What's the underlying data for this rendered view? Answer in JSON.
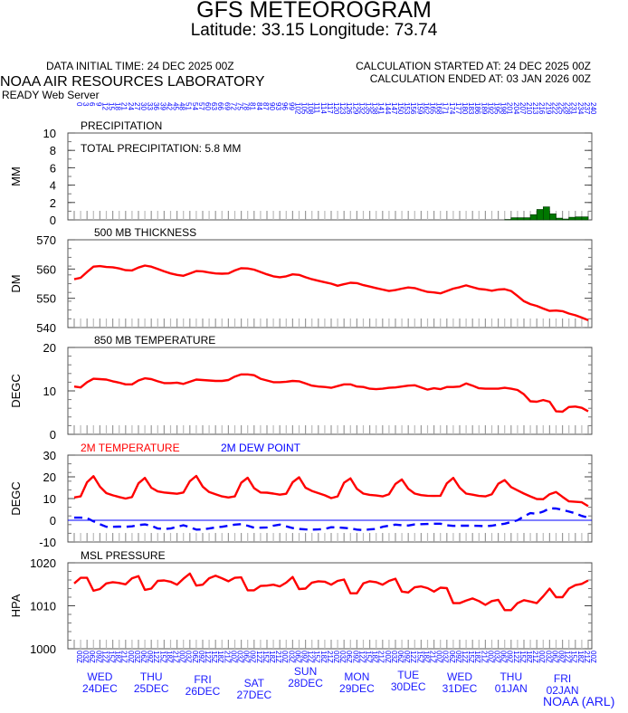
{
  "header": {
    "title": "GFS METEOROGRAM",
    "location": "Latitude: 33.15 Longitude:  73.74",
    "data_initial_time": "DATA INITIAL TIME: 24 DEC 2025 00Z",
    "calc_started": "CALCULATION STARTED AT: 24 DEC 2025 00Z",
    "calc_ended": "CALCULATION ENDED AT: 03 JAN 2026 00Z",
    "lab": "NOAA AIR RESOURCES LABORATORY",
    "server": "READY Web Server"
  },
  "footer": "NOAA (ARL)",
  "colors": {
    "red": "#ff0000",
    "blue": "#0000ff",
    "green": "#007700",
    "label_blue": "#1a1aff"
  },
  "chart_data": {
    "type": "line",
    "x_forecast_hours_step": 3,
    "x_forecast_hours_range": [
      0,
      240
    ],
    "days": [
      {
        "dow": "WED",
        "date": "24DEC"
      },
      {
        "dow": "THU",
        "date": "25DEC"
      },
      {
        "dow": "FRI",
        "date": "26DEC"
      },
      {
        "dow": "SAT",
        "date": "27DEC"
      },
      {
        "dow": "SUN",
        "date": "28DEC"
      },
      {
        "dow": "MON",
        "date": "29DEC"
      },
      {
        "dow": "TUE",
        "date": "30DEC"
      },
      {
        "dow": "WED",
        "date": "31DEC"
      },
      {
        "dow": "THU",
        "date": "01JAN"
      },
      {
        "dow": "FRI",
        "date": "02JAN"
      }
    ],
    "panels": [
      {
        "id": "precip",
        "type": "bar",
        "title": "PRECIPITATION",
        "ylabel": "MM",
        "annotation": "TOTAL PRECIPITATION:   5.8 MM",
        "ylim": [
          0,
          10
        ],
        "yticks": [
          0,
          2,
          4,
          6,
          8,
          10
        ],
        "series": [
          {
            "name": "PRECIPITATION",
            "color": "#007700",
            "values": [
              0,
              0,
              0,
              0,
              0,
              0,
              0,
              0,
              0,
              0,
              0,
              0,
              0,
              0,
              0,
              0,
              0,
              0,
              0,
              0,
              0,
              0,
              0,
              0,
              0,
              0,
              0,
              0,
              0,
              0,
              0,
              0,
              0,
              0,
              0,
              0,
              0,
              0,
              0,
              0,
              0,
              0,
              0,
              0,
              0,
              0,
              0,
              0,
              0,
              0,
              0,
              0,
              0,
              0,
              0,
              0,
              0,
              0,
              0,
              0,
              0,
              0,
              0,
              0,
              0,
              0,
              0,
              0,
              0.05,
              0.25,
              0.25,
              0.25,
              0.6,
              1.2,
              1.5,
              0.7,
              0.2,
              0.1,
              0.3,
              0.35,
              0.35
            ]
          }
        ]
      },
      {
        "id": "thickness",
        "type": "line",
        "title": "500 MB  THICKNESS",
        "ylabel": "DM",
        "ylim": [
          540,
          570
        ],
        "yticks": [
          540,
          550,
          560,
          570
        ],
        "series": [
          {
            "name": "500 MB THICKNESS",
            "color": "#ff0000",
            "values": [
              556.5,
              557,
              559,
              560.8,
              561,
              560.7,
              560.6,
              560.2,
              559.6,
              559.5,
              560.5,
              561.2,
              560.8,
              560,
              559.2,
              558.5,
              558,
              557.7,
              558.5,
              559.3,
              559.2,
              558.8,
              558.5,
              558.4,
              558.5,
              559.5,
              560.3,
              560.2,
              559.8,
              559,
              558.2,
              557.5,
              557.2,
              557.5,
              558.2,
              558,
              557.2,
              556.5,
              556,
              555.5,
              555,
              554.3,
              554.8,
              555.3,
              555.2,
              554.5,
              554,
              553.5,
              553,
              552.5,
              552.8,
              553.3,
              553.7,
              553.5,
              552.8,
              552.2,
              552,
              551.7,
              552.5,
              553.3,
              553.8,
              554.4,
              553.8,
              553.2,
              553,
              552.6,
              553,
              553.1,
              552.5,
              550.8,
              549,
              548,
              547.4,
              546.5,
              545.7,
              545.8,
              545.6,
              544.8,
              544.2,
              543.4,
              542.5
            ]
          }
        ]
      },
      {
        "id": "t850",
        "type": "line",
        "title": "850 MB  TEMPERATURE",
        "ylabel": "DEGC",
        "ylim": [
          0,
          20
        ],
        "yticks": [
          0,
          10,
          20
        ],
        "series": [
          {
            "name": "850 MB TEMPERATURE",
            "color": "#ff0000",
            "values": [
              11.0,
              10.8,
              12.0,
              12.8,
              12.7,
              12.6,
              12.2,
              11.9,
              11.5,
              11.5,
              12.4,
              12.9,
              12.7,
              12.2,
              11.8,
              11.8,
              11.9,
              11.6,
              12.1,
              12.6,
              12.5,
              12.4,
              12.3,
              12.3,
              12.5,
              13.3,
              13.8,
              13.8,
              13.6,
              12.8,
              12.4,
              12.0,
              12.0,
              12.1,
              12.3,
              12.2,
              11.7,
              11.2,
              11.0,
              10.9,
              10.7,
              11.1,
              11.5,
              11.5,
              11.0,
              10.9,
              10.5,
              10.4,
              10.5,
              10.7,
              10.8,
              11.0,
              11.2,
              11.3,
              10.8,
              10.3,
              10.6,
              10.4,
              10.9,
              10.9,
              11.0,
              11.7,
              11.2,
              10.6,
              10.5,
              10.5,
              10.5,
              10.7,
              10.5,
              10.2,
              9.2,
              7.6,
              7.5,
              7.9,
              7.5,
              5.3,
              5.2,
              6.3,
              6.4,
              6.1,
              5.3
            ]
          }
        ]
      },
      {
        "id": "t2m",
        "type": "line",
        "title": "2M TEMPERATURE",
        "title2": "2M   DEW POINT",
        "ylabel": "DEGC",
        "ylim": [
          -10,
          30
        ],
        "yticks": [
          -10,
          0,
          10,
          20,
          30
        ],
        "series": [
          {
            "name": "2M TEMPERATURE",
            "color": "#ff0000",
            "values": [
              10.5,
              11,
              17.5,
              20.3,
              15.5,
              12.5,
              11.5,
              10.7,
              10,
              10.7,
              17,
              19.5,
              15,
              13.3,
              12.8,
              12.5,
              12.2,
              12.8,
              18,
              20.4,
              15.5,
              13,
              12,
              11,
              10.5,
              11,
              17.3,
              19.6,
              14.8,
              12.8,
              12.7,
              12.3,
              11.8,
              12.2,
              17.5,
              19.8,
              15,
              13.5,
              12.5,
              11.5,
              10.2,
              11,
              17.3,
              19.3,
              14.5,
              12.3,
              11.7,
              11.4,
              11.0,
              12,
              16.7,
              18.8,
              14.5,
              12.3,
              11.6,
              11.3,
              11.2,
              11.3,
              17,
              19.5,
              15,
              12.3,
              11.8,
              11.2,
              11.0,
              12.0,
              16.8,
              18.5,
              15.3,
              13.8,
              12.3,
              11,
              9.8,
              9.7,
              12,
              13,
              10.8,
              8.7,
              8.5,
              8.3,
              6.5
            ]
          },
          {
            "name": "2M DEW POINT",
            "color": "#0000ff",
            "dashed": true,
            "values": [
              1.2,
              1.2,
              1.0,
              -0.5,
              -1.8,
              -3.0,
              -3.0,
              -2.9,
              -3.0,
              -2.8,
              -2.2,
              -1.9,
              -2.5,
              -3.8,
              -4.0,
              -3.8,
              -3.0,
              -2.3,
              -3.2,
              -4.3,
              -4.2,
              -3.8,
              -3.3,
              -3.0,
              -2.5,
              -2.0,
              -1.8,
              -2.5,
              -3.4,
              -3.4,
              -3.3,
              -2.5,
              -2.0,
              -2.8,
              -3.6,
              -4.0,
              -4.2,
              -4.3,
              -4.2,
              -4.0,
              -3.2,
              -3.3,
              -3.5,
              -3.8,
              -4.3,
              -4.5,
              -4.2,
              -4.0,
              -3.0,
              -2.5,
              -2.0,
              -2.3,
              -2.4,
              -1.9,
              -1.8,
              -1.7,
              -1.6,
              -1.6,
              -2.3,
              -2.6,
              -2.5,
              -2.5,
              -2.5,
              -2.6,
              -2.7,
              -2.5,
              -2.0,
              -1.6,
              -0.8,
              0.0,
              1.8,
              3.3,
              3.0,
              4.0,
              5.5,
              5.4,
              4.8,
              4.0,
              3.2,
              2.0,
              1.2
            ]
          }
        ]
      },
      {
        "id": "mslp",
        "type": "line",
        "title": "MSL PRESSURE",
        "ylabel": "HPA",
        "ylim": [
          1000,
          1020
        ],
        "yticks": [
          1000,
          1010,
          1020
        ],
        "series": [
          {
            "name": "MSL PRESSURE",
            "color": "#ff0000",
            "values": [
              1015.2,
              1016.5,
              1016.5,
              1013.5,
              1013.9,
              1015.2,
              1015.5,
              1015.3,
              1015.0,
              1016.4,
              1016.9,
              1013.7,
              1014.0,
              1015.8,
              1015.9,
              1015.6,
              1014.9,
              1016.3,
              1017.5,
              1014.7,
              1014.9,
              1016.4,
              1017.0,
              1016.4,
              1015.7,
              1016.5,
              1016.6,
              1013.6,
              1013.6,
              1014.6,
              1014.7,
              1014.9,
              1014.5,
              1015.4,
              1016.7,
              1013.9,
              1014.0,
              1015.4,
              1015.7,
              1015.6,
              1014.9,
              1015.8,
              1016.1,
              1012.9,
              1012.9,
              1015.2,
              1015.7,
              1015.5,
              1014.9,
              1015.8,
              1016.3,
              1013.3,
              1013.1,
              1014.3,
              1014.5,
              1014.1,
              1013.3,
              1014.2,
              1014.1,
              1010.6,
              1010.6,
              1011.2,
              1011.7,
              1011.1,
              1010.2,
              1011.1,
              1011.4,
              1009.0,
              1009.0,
              1010.6,
              1011.3,
              1011.0,
              1010.6,
              1012.2,
              1014.0,
              1012.0,
              1012.0,
              1014.0,
              1014.8,
              1015.1,
              1015.9
            ]
          }
        ]
      }
    ]
  }
}
